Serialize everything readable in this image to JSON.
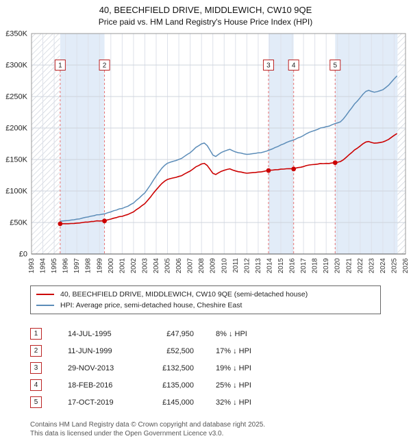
{
  "title": "40, BEECHFIELD DRIVE, MIDDLEWICH, CW10 9QE",
  "subtitle": "Price paid vs. HM Land Registry's House Price Index (HPI)",
  "chart_data": {
    "type": "line",
    "title": "40, BEECHFIELD DRIVE, MIDDLEWICH, CW10 9QE",
    "subtitle": "Price paid vs. HM Land Registry's House Price Index (HPI)",
    "x_range": [
      1993,
      2026
    ],
    "y_range_k": [
      0,
      350
    ],
    "grid": true,
    "legend_position": "below",
    "y_ticks": [
      {
        "v": 0,
        "label": "£0"
      },
      {
        "v": 50,
        "label": "£50K"
      },
      {
        "v": 100,
        "label": "£100K"
      },
      {
        "v": 150,
        "label": "£150K"
      },
      {
        "v": 200,
        "label": "£200K"
      },
      {
        "v": 250,
        "label": "£250K"
      },
      {
        "v": 300,
        "label": "£300K"
      },
      {
        "v": 350,
        "label": "£350K"
      }
    ],
    "x_ticks": [
      1993,
      1994,
      1995,
      1996,
      1997,
      1998,
      1999,
      2000,
      2001,
      2002,
      2003,
      2004,
      2005,
      2006,
      2007,
      2008,
      2009,
      2010,
      2011,
      2012,
      2013,
      2014,
      2015,
      2016,
      2017,
      2018,
      2019,
      2020,
      2021,
      2022,
      2023,
      2024,
      2025,
      2026
    ],
    "x_start": 1995.5,
    "x_step": 0.25,
    "series": [
      {
        "name": "40, BEECHFIELD DRIVE, MIDDLEWICH, CW10 9QE (semi-detached house)",
        "color": "#cc0000",
        "width": 1.6,
        "values_k": [
          47.9,
          48.0,
          48.0,
          48.0,
          48.4,
          48.5,
          49.0,
          49.2,
          50.0,
          50.6,
          50.7,
          51.5,
          51.7,
          52.6,
          52.4,
          52.6,
          53.0,
          54.4,
          55.4,
          56.9,
          57.8,
          59.3,
          59.8,
          61.4,
          62.7,
          64.9,
          66.8,
          70.3,
          73.3,
          76.9,
          80.0,
          85.2,
          90.4,
          96.5,
          101.9,
          107.0,
          112.0,
          115.7,
          118.4,
          119.7,
          120.8,
          121.7,
          123.2,
          124.4,
          127.1,
          129.5,
          131.6,
          134.9,
          138.4,
          140.4,
          142.9,
          143.9,
          140.5,
          134.5,
          128.2,
          126.2,
          128.9,
          131.3,
          132.8,
          134.2,
          135.2,
          133.3,
          131.8,
          130.7,
          130.1,
          129.0,
          128.3,
          128.7,
          129.1,
          129.5,
          130.1,
          130.3,
          131.2,
          132.2,
          133.0,
          133.2,
          133.8,
          133.9,
          134.7,
          134.8,
          135.3,
          135.4,
          135.3,
          136.1,
          137.2,
          137.7,
          138.8,
          140.3,
          141.3,
          141.8,
          142.2,
          142.7,
          143.7,
          143.5,
          143.8,
          143.7,
          144.5,
          145.0,
          145.7,
          146.7,
          149.4,
          153.1,
          157.3,
          161.0,
          165.1,
          168.0,
          171.4,
          175.1,
          177.8,
          178.6,
          177.1,
          176.0,
          176.3,
          177.0,
          177.8,
          179.7,
          181.9,
          185.1,
          188.4,
          191.2
        ]
      },
      {
        "name": "HPI: Average price, semi-detached house, Cheshire East",
        "color": "#5b8cb8",
        "width": 1.5,
        "values_k": [
          52.0,
          52.4,
          52.8,
          53.1,
          53.9,
          54.4,
          55.3,
          55.8,
          57.1,
          58.2,
          58.8,
          60.1,
          60.8,
          62.2,
          62.4,
          63.1,
          63.9,
          65.6,
          66.8,
          68.7,
          69.8,
          71.6,
          72.3,
          74.2,
          75.8,
          78.6,
          80.9,
          85.2,
          88.8,
          93.2,
          97.1,
          103.4,
          109.8,
          117.2,
          123.8,
          130.1,
          136.2,
          140.8,
          144.1,
          145.8,
          147.2,
          148.4,
          150.2,
          151.8,
          155.1,
          158.2,
          160.8,
          164.9,
          169.2,
          171.8,
          174.9,
          176.2,
          172.1,
          164.8,
          157.2,
          154.8,
          158.1,
          161.2,
          163.1,
          164.8,
          166.2,
          163.9,
          162.1,
          160.8,
          160.2,
          158.9,
          158.1,
          158.6,
          159.2,
          159.8,
          160.6,
          160.9,
          162.1,
          163.4,
          165.2,
          166.9,
          169.1,
          170.8,
          173.2,
          174.8,
          177.1,
          178.9,
          180.2,
          181.9,
          184.2,
          185.8,
          188.1,
          190.9,
          193.2,
          194.8,
          196.2,
          197.9,
          200.1,
          200.8,
          202.2,
          202.9,
          205.1,
          206.8,
          208.2,
          209.8,
          214.1,
          219.8,
          226.2,
          231.8,
          238.2,
          242.8,
          248.1,
          253.8,
          258.2,
          259.8,
          258.1,
          256.9,
          257.8,
          259.2,
          260.8,
          264.1,
          267.8,
          272.9,
          278.2,
          282.8
        ]
      }
    ],
    "bands": [
      [
        1995.53,
        1999.44
      ],
      [
        2013.91,
        2016.13
      ],
      [
        2019.79,
        2025.3
      ]
    ],
    "band_color": "#e2ecf8",
    "hatch_regions": [
      [
        1993,
        1995.5
      ],
      [
        2025.3,
        2026
      ]
    ],
    "sales": [
      {
        "n": "1",
        "x": 1995.53,
        "price_k": 47.95,
        "date": "14-JUL-1995"
      },
      {
        "n": "2",
        "x": 1999.44,
        "price_k": 52.5,
        "date": "11-JUN-1999"
      },
      {
        "n": "3",
        "x": 2013.91,
        "price_k": 132.5,
        "date": "29-NOV-2013"
      },
      {
        "n": "4",
        "x": 2016.13,
        "price_k": 135.0,
        "date": "18-FEB-2016"
      },
      {
        "n": "5",
        "x": 2019.79,
        "price_k": 145.0,
        "date": "17-OCT-2019"
      }
    ]
  },
  "table": {
    "rows": [
      {
        "num": "1",
        "date": "14-JUL-1995",
        "price": "£47,950",
        "vs_hpi": "8% ↓ HPI"
      },
      {
        "num": "2",
        "date": "11-JUN-1999",
        "price": "£52,500",
        "vs_hpi": "17% ↓ HPI"
      },
      {
        "num": "3",
        "date": "29-NOV-2013",
        "price": "£132,500",
        "vs_hpi": "19% ↓ HPI"
      },
      {
        "num": "4",
        "date": "18-FEB-2016",
        "price": "£135,000",
        "vs_hpi": "25% ↓ HPI"
      },
      {
        "num": "5",
        "date": "17-OCT-2019",
        "price": "£145,000",
        "vs_hpi": "32% ↓ HPI"
      }
    ]
  },
  "footer": {
    "line1": "Contains HM Land Registry data © Crown copyright and database right 2025.",
    "line2": "This data is licensed under the Open Government Licence v3.0."
  }
}
